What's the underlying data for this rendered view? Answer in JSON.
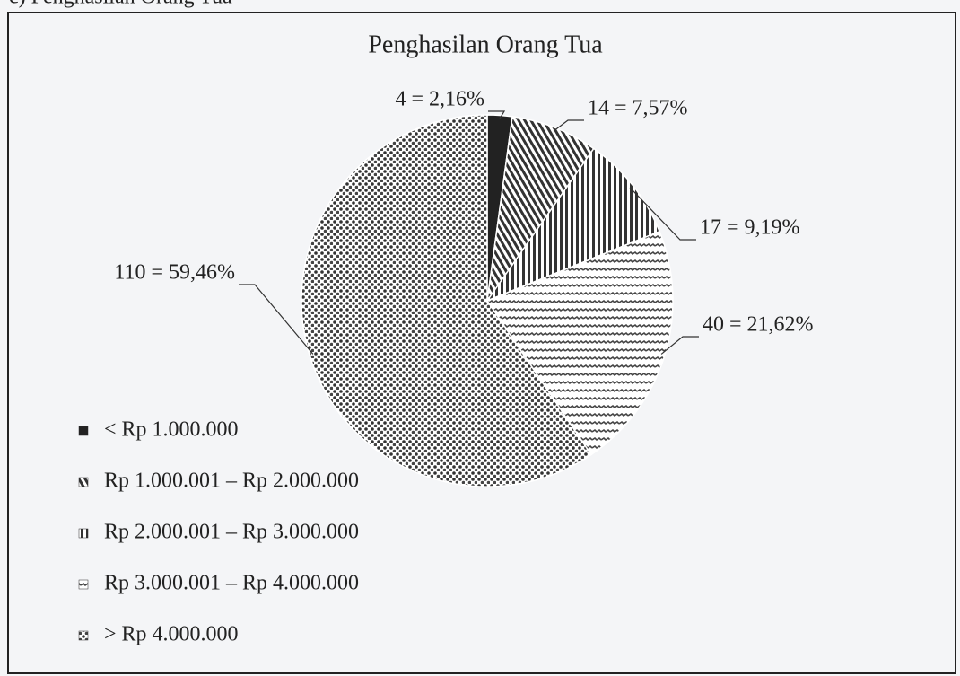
{
  "chart_data": {
    "type": "pie",
    "caption": "c) Penghasilan Orang Tua",
    "title": "Penghasilan Orang Tua",
    "categories": [
      "< Rp 1.000.000",
      "Rp 1.000.001 – Rp 2.000.000",
      "Rp 2.000.001 – Rp 3.000.000",
      "Rp 3.000.001 – Rp 4.000.000",
      "> Rp 4.000.000"
    ],
    "values": [
      4,
      14,
      17,
      40,
      110
    ],
    "value_labels": [
      "4 = 2,16%",
      "14 = 7,57%",
      "17 = 9,19%",
      "40 = 21,62%",
      "110 = 59,46%"
    ],
    "color": "#2a2a2a",
    "legend": "bottom-left"
  }
}
